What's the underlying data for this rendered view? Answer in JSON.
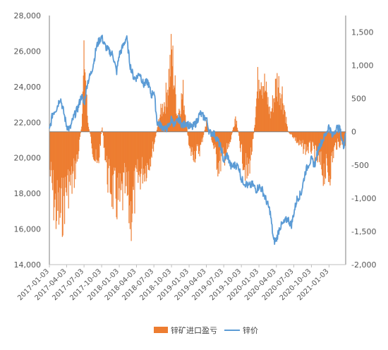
{
  "chart_data": {
    "type": "bar",
    "title": "",
    "xlabel": "",
    "ylabel_left": "",
    "ylabel_right": "",
    "grid": false,
    "legend_position": "bottom-center",
    "colors": {
      "profit_area": "#ED7D31",
      "price_line": "#5B9BD5",
      "right_negative_ticks": "#C00000",
      "right_positive_ticks": "#595959",
      "axis": "#7F7F7F"
    },
    "y_left": {
      "min": 14000,
      "max": 28000,
      "ticks": [
        14000,
        16000,
        18000,
        20000,
        22000,
        24000,
        26000,
        28000
      ],
      "tick_labels": [
        "14,000",
        "16,000",
        "18,000",
        "20,000",
        "22,000",
        "24,000",
        "26,000",
        "28,000"
      ]
    },
    "y_right": {
      "min": -2000,
      "max": 1750,
      "ticks": [
        -2000,
        -1500,
        -1000,
        -500,
        0,
        500,
        1000,
        1500
      ],
      "tick_labels": [
        "-2,000",
        "-1,500",
        "-1,000",
        "-500",
        "0",
        "500",
        "1,000",
        "1,500"
      ]
    },
    "x_ticks": [
      "2017-01-03",
      "2017-04-03",
      "2017-07-03",
      "2017-10-03",
      "2018-01-03",
      "2018-04-03",
      "2018-07-03",
      "2018-10-03",
      "2019-01-03",
      "2019-04-03",
      "2019-07-03",
      "2019-10-03",
      "2020-01-03",
      "2020-04-03",
      "2020-07-03",
      "2020-10-03",
      "2021-01-03"
    ],
    "x_range": [
      "2017-01-03",
      "2021-03-31"
    ],
    "series": [
      {
        "name": "锌矿进口盈亏",
        "type": "bar",
        "axis": "right",
        "dates": [
          "2017-01-03",
          "2017-02-01",
          "2017-03-01",
          "2017-04-03",
          "2017-05-01",
          "2017-06-01",
          "2017-06-20",
          "2017-07-03",
          "2017-07-20",
          "2017-08-15",
          "2017-09-10",
          "2017-10-03",
          "2017-11-01",
          "2017-12-01",
          "2018-01-03",
          "2018-02-01",
          "2018-03-01",
          "2018-04-03",
          "2018-05-01",
          "2018-06-01",
          "2018-07-03",
          "2018-08-01",
          "2018-09-01",
          "2018-10-03",
          "2018-11-01",
          "2018-12-01",
          "2019-01-03",
          "2019-02-01",
          "2019-03-01",
          "2019-04-03",
          "2019-05-01",
          "2019-06-01",
          "2019-07-03",
          "2019-08-01",
          "2019-09-01",
          "2019-10-03",
          "2019-11-01",
          "2019-12-01",
          "2020-01-03",
          "2020-02-01",
          "2020-03-01",
          "2020-04-03",
          "2020-05-01",
          "2020-06-01",
          "2020-07-03",
          "2020-08-01",
          "2020-09-01",
          "2020-10-03",
          "2020-11-01",
          "2020-12-01",
          "2021-01-03",
          "2021-02-01",
          "2021-03-01",
          "2021-03-31"
        ],
        "values": [
          -700,
          -1400,
          -1500,
          -1000,
          -900,
          -400,
          200,
          1400,
          200,
          -300,
          -700,
          100,
          -800,
          -1100,
          -1300,
          -1000,
          -1500,
          -900,
          -700,
          -600,
          -200,
          300,
          600,
          1400,
          300,
          700,
          -350,
          -400,
          -300,
          200,
          -150,
          -600,
          -450,
          -250,
          300,
          -400,
          -800,
          -200,
          1200,
          800,
          300,
          900,
          700,
          0,
          -100,
          -250,
          -300,
          -300,
          -500,
          -700,
          -750,
          -250,
          -200,
          -200
        ]
      },
      {
        "name": "锌价",
        "type": "line",
        "axis": "left",
        "dates": [
          "2017-01-03",
          "2017-01-20",
          "2017-02-10",
          "2017-03-01",
          "2017-03-20",
          "2017-04-03",
          "2017-04-20",
          "2017-05-10",
          "2017-06-01",
          "2017-06-20",
          "2017-07-03",
          "2017-07-20",
          "2017-08-10",
          "2017-08-25",
          "2017-09-05",
          "2017-09-20",
          "2017-10-03",
          "2017-10-20",
          "2017-11-10",
          "2017-12-01",
          "2017-12-20",
          "2018-01-03",
          "2018-01-20",
          "2018-02-10",
          "2018-03-01",
          "2018-03-20",
          "2018-04-03",
          "2018-04-20",
          "2018-05-10",
          "2018-06-01",
          "2018-06-20",
          "2018-07-03",
          "2018-07-20",
          "2018-08-10",
          "2018-09-01",
          "2018-09-20",
          "2018-10-03",
          "2018-10-20",
          "2018-11-10",
          "2018-12-01",
          "2018-12-20",
          "2019-01-03",
          "2019-01-20",
          "2019-02-10",
          "2019-03-01",
          "2019-03-20",
          "2019-04-03",
          "2019-04-20",
          "2019-05-10",
          "2019-06-01",
          "2019-06-20",
          "2019-07-03",
          "2019-07-20",
          "2019-08-10",
          "2019-09-01",
          "2019-09-20",
          "2019-10-03",
          "2019-10-20",
          "2019-11-10",
          "2019-12-01",
          "2019-12-20",
          "2020-01-03",
          "2020-01-20",
          "2020-02-10",
          "2020-03-01",
          "2020-03-20",
          "2020-04-03",
          "2020-04-20",
          "2020-05-10",
          "2020-06-01",
          "2020-06-20",
          "2020-07-03",
          "2020-07-20",
          "2020-08-10",
          "2020-09-01",
          "2020-09-20",
          "2020-10-03",
          "2020-10-20",
          "2020-11-10",
          "2020-12-01",
          "2020-12-20",
          "2021-01-03",
          "2021-01-20",
          "2021-02-10",
          "2021-03-01",
          "2021-03-20",
          "2021-03-31"
        ],
        "values": [
          21500,
          22500,
          22800,
          23400,
          22500,
          21800,
          21600,
          22300,
          22800,
          23500,
          23000,
          24200,
          24800,
          25500,
          26200,
          26600,
          26800,
          26300,
          26000,
          25800,
          24800,
          25800,
          26200,
          26800,
          25200,
          24500,
          24500,
          24800,
          24100,
          24300,
          23500,
          23800,
          22000,
          21800,
          21600,
          21800,
          22200,
          21800,
          22200,
          21800,
          22000,
          21800,
          21700,
          22000,
          22500,
          22300,
          22200,
          21400,
          21400,
          21000,
          20500,
          19800,
          20200,
          19500,
          19600,
          19500,
          18800,
          18600,
          18400,
          18500,
          18200,
          18400,
          18200,
          17600,
          17000,
          15300,
          15400,
          16100,
          16300,
          16600,
          16200,
          16900,
          17700,
          18000,
          19200,
          19700,
          19900,
          19600,
          20600,
          21000,
          21400,
          21800,
          21200,
          21700,
          21600,
          20600,
          21500
        ]
      }
    ]
  }
}
